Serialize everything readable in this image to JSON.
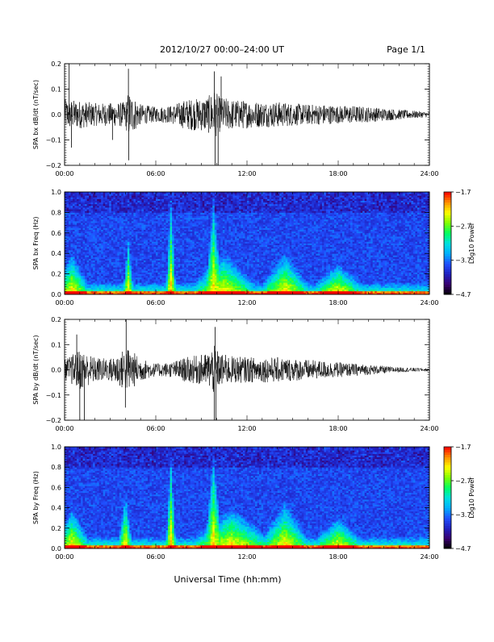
{
  "header": {
    "title": "2012/10/27   00:00–24:00 UT",
    "page": "Page 1/1"
  },
  "footer": {
    "xlabel": "Universal Time (hh:mm)"
  },
  "time_ticks": [
    "00:00",
    "06:00",
    "12:00",
    "18:00",
    "24:00"
  ],
  "colors": {
    "colormap": [
      "#000000",
      "#3a006f",
      "#2020c0",
      "#2050ff",
      "#00b0ff",
      "#00e0e0",
      "#00ff60",
      "#80ff00",
      "#ffff00",
      "#ff9000",
      "#ff0000"
    ]
  },
  "chart_data": [
    {
      "type": "line",
      "id": "bx-dbdt",
      "ylabel": "SPA bx dB/dt (nT/sec)",
      "xlim": [
        0,
        24
      ],
      "ylim": [
        -0.2,
        0.2
      ],
      "yticks": [
        "0.2",
        "0.1",
        "0.0",
        "−0.1",
        "−0.2"
      ],
      "ytick_values": [
        0.2,
        0.1,
        0.0,
        -0.1,
        -0.2
      ],
      "envelope": {
        "x": [
          0,
          1,
          2,
          3,
          4,
          4.2,
          5,
          6,
          7,
          8,
          9,
          9.5,
          9.8,
          10.2,
          11,
          12,
          13,
          14,
          15,
          16,
          17,
          18,
          19,
          20,
          21,
          22,
          23,
          24
        ],
        "amp": [
          0.06,
          0.055,
          0.045,
          0.045,
          0.05,
          0.09,
          0.04,
          0.03,
          0.035,
          0.06,
          0.065,
          0.075,
          0.1,
          0.07,
          0.06,
          0.055,
          0.05,
          0.05,
          0.045,
          0.04,
          0.04,
          0.035,
          0.035,
          0.03,
          0.025,
          0.02,
          0.015,
          0.01
        ]
      },
      "spikes": [
        {
          "t": 0.3,
          "v": 0.2
        },
        {
          "t": 0.45,
          "v": -0.13
        },
        {
          "t": 3.15,
          "v": -0.1
        },
        {
          "t": 4.2,
          "v": 0.18
        },
        {
          "t": 4.22,
          "v": -0.18
        },
        {
          "t": 9.85,
          "v": 0.17
        },
        {
          "t": 9.9,
          "v": -0.2
        },
        {
          "t": 10.1,
          "v": -0.2
        },
        {
          "t": 10.3,
          "v": 0.15
        }
      ]
    },
    {
      "type": "heatmap",
      "id": "bx-spectrogram",
      "ylabel": "SPA bx Freq (Hz)",
      "xlim": [
        0,
        24
      ],
      "ylim": [
        0,
        1.0
      ],
      "yticks": [
        "1.0",
        "0.8",
        "0.6",
        "0.4",
        "0.2",
        "0.0"
      ],
      "ytick_values": [
        1.0,
        0.8,
        0.6,
        0.4,
        0.2,
        0.0
      ],
      "colorbar": {
        "label": "Log10 Power",
        "ticks": [
          "−1.7",
          "−2.7",
          "−3.7",
          "−4.7"
        ],
        "tick_values": [
          -1.7,
          -2.7,
          -3.7,
          -4.7
        ],
        "range": [
          -4.7,
          -1.7
        ]
      },
      "activity": [
        {
          "t": 0.5,
          "w": 1.0,
          "top": 0.3
        },
        {
          "t": 4.2,
          "w": 0.3,
          "top": 0.45
        },
        {
          "t": 7.0,
          "w": 0.3,
          "top": 0.9
        },
        {
          "t": 9.8,
          "w": 0.5,
          "top": 0.9
        },
        {
          "t": 10.5,
          "w": 2.0,
          "top": 0.3
        },
        {
          "t": 14.5,
          "w": 1.5,
          "top": 0.3
        },
        {
          "t": 18.0,
          "w": 1.5,
          "top": 0.2
        }
      ]
    },
    {
      "type": "line",
      "id": "by-dbdt",
      "ylabel": "SPA by dB/dt (nT/sec)",
      "xlim": [
        0,
        24
      ],
      "ylim": [
        -0.2,
        0.2
      ],
      "yticks": [
        "0.2",
        "0.1",
        "0.0",
        "−0.1",
        "−0.2"
      ],
      "ytick_values": [
        0.2,
        0.1,
        0.0,
        -0.1,
        -0.2
      ],
      "envelope": {
        "x": [
          0,
          1,
          2,
          3,
          4,
          4.2,
          5,
          6,
          7,
          8,
          9,
          9.5,
          9.8,
          10.2,
          11,
          12,
          13,
          14,
          15,
          16,
          17,
          18,
          19,
          20,
          21,
          22,
          23,
          24
        ],
        "amp": [
          0.04,
          0.08,
          0.05,
          0.045,
          0.085,
          0.09,
          0.045,
          0.025,
          0.03,
          0.05,
          0.06,
          0.07,
          0.1,
          0.065,
          0.055,
          0.05,
          0.05,
          0.05,
          0.045,
          0.04,
          0.035,
          0.03,
          0.025,
          0.02,
          0.015,
          0.01,
          0.008,
          0.006
        ]
      },
      "spikes": [
        {
          "t": 1.0,
          "v": -0.2
        },
        {
          "t": 1.3,
          "v": -0.2
        },
        {
          "t": 0.8,
          "v": 0.14
        },
        {
          "t": 4.05,
          "v": 0.2
        },
        {
          "t": 4.0,
          "v": -0.15
        },
        {
          "t": 9.9,
          "v": 0.17
        },
        {
          "t": 9.85,
          "v": -0.2
        },
        {
          "t": 9.95,
          "v": -0.2
        }
      ]
    },
    {
      "type": "heatmap",
      "id": "by-spectrogram",
      "ylabel": "SPA by Freq (Hz)",
      "xlim": [
        0,
        24
      ],
      "ylim": [
        0,
        1.0
      ],
      "yticks": [
        "1.0",
        "0.8",
        "0.6",
        "0.4",
        "0.2",
        "0.0"
      ],
      "ytick_values": [
        1.0,
        0.8,
        0.6,
        0.4,
        0.2,
        0.0
      ],
      "colorbar": {
        "label": "Log10 Power",
        "ticks": [
          "−1.7",
          "−2.7",
          "−3.7",
          "−4.7"
        ],
        "tick_values": [
          -1.7,
          -2.7,
          -3.7,
          -4.7
        ],
        "range": [
          -4.7,
          -1.7
        ]
      },
      "activity": [
        {
          "t": 0.5,
          "w": 1.0,
          "top": 0.3
        },
        {
          "t": 4.0,
          "w": 0.4,
          "top": 0.45
        },
        {
          "t": 7.0,
          "w": 0.3,
          "top": 0.9
        },
        {
          "t": 9.8,
          "w": 0.5,
          "top": 0.9
        },
        {
          "t": 11.0,
          "w": 2.5,
          "top": 0.3
        },
        {
          "t": 14.5,
          "w": 1.5,
          "top": 0.35
        },
        {
          "t": 18.0,
          "w": 1.5,
          "top": 0.2
        }
      ]
    }
  ]
}
